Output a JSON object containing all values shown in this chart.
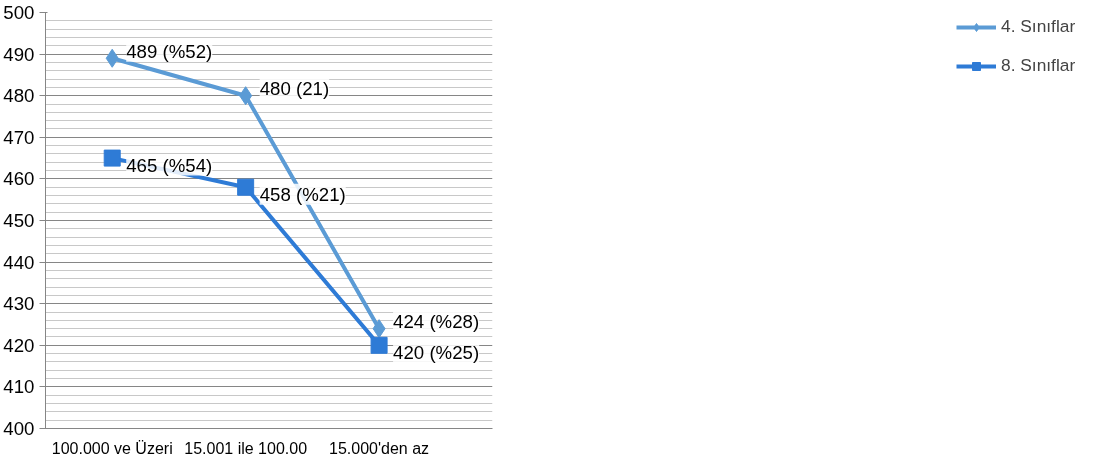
{
  "chart_data": {
    "type": "line",
    "categories": [
      "100.000 ve Üzeri",
      "15.001 ile 100.00",
      "15.000'den az"
    ],
    "series": [
      {
        "name": "4. Sınıflar",
        "color": "#5b9bd5",
        "marker": "diamond",
        "values": [
          489,
          480,
          424
        ],
        "value_labels": [
          "489 (%52)",
          "480 (21)",
          "424 (%28)"
        ]
      },
      {
        "name": "8. Sınıflar",
        "color": "#2e7bd6",
        "marker": "square",
        "values": [
          465,
          458,
          420
        ],
        "value_labels": [
          "465 (%54)",
          "458 (%21)",
          "420 (%25)"
        ]
      }
    ],
    "ylim": [
      400,
      500
    ],
    "yticks": [
      400,
      410,
      420,
      430,
      440,
      450,
      460,
      470,
      480,
      490,
      500
    ],
    "grid": "y",
    "legend": "right"
  }
}
